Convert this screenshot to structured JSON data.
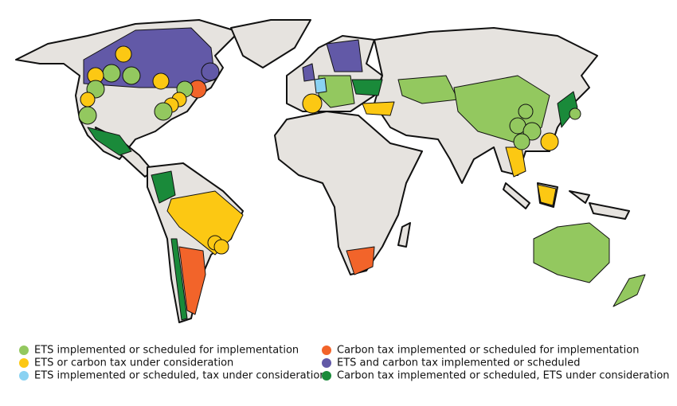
{
  "legend": [
    {
      "label": "ETS implemented or scheduled for implementation",
      "color": "#93c85f"
    },
    {
      "label": "ETS or carbon tax under consideration",
      "color": "#fcc813"
    },
    {
      "label": "ETS implemented or scheduled, tax under consideration",
      "color": "#8ad2f2"
    },
    {
      "label": "Carbon tax implemented or scheduled for implementation",
      "color": "#f2642a"
    },
    {
      "label": "ETS and carbon tax implemented or scheduled",
      "color": "#6259a7"
    },
    {
      "label": "Carbon tax implemented or scheduled, ETS under consideration",
      "color": "#1a8a3a"
    }
  ]
}
